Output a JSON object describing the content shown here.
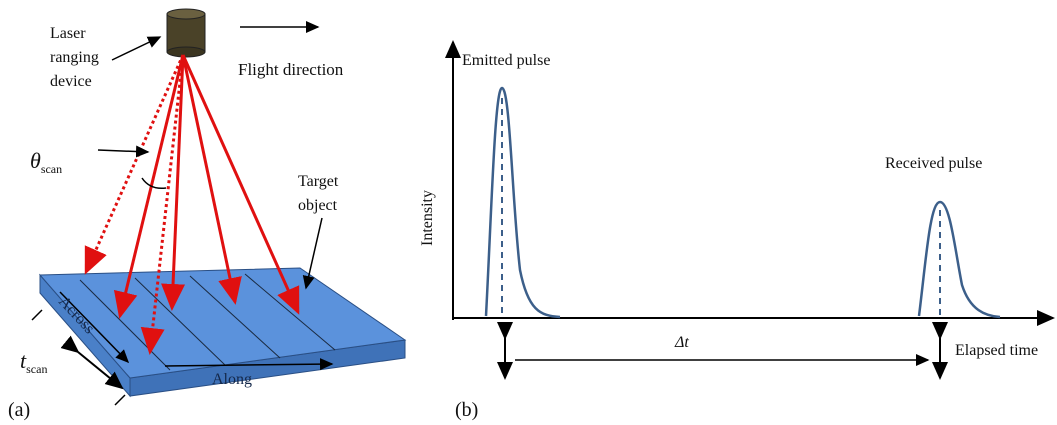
{
  "panel_a": {
    "device_label": [
      "Laser",
      "ranging",
      "device"
    ],
    "flight_direction": "Flight direction",
    "scan_angle": {
      "symbol": "θ",
      "subscript": "scan"
    },
    "target_label": [
      "Target",
      "object"
    ],
    "across": "Across",
    "along": "Along",
    "scan_width": {
      "symbol": "t",
      "subscript": "scan"
    },
    "panel_label": "(a)"
  },
  "panel_b": {
    "emitted": "Emitted pulse",
    "received": "Received pulse",
    "y_axis": "Intensity",
    "delta": "Δt",
    "x_axis": "Elapsed time",
    "panel_label": "(b)"
  }
}
